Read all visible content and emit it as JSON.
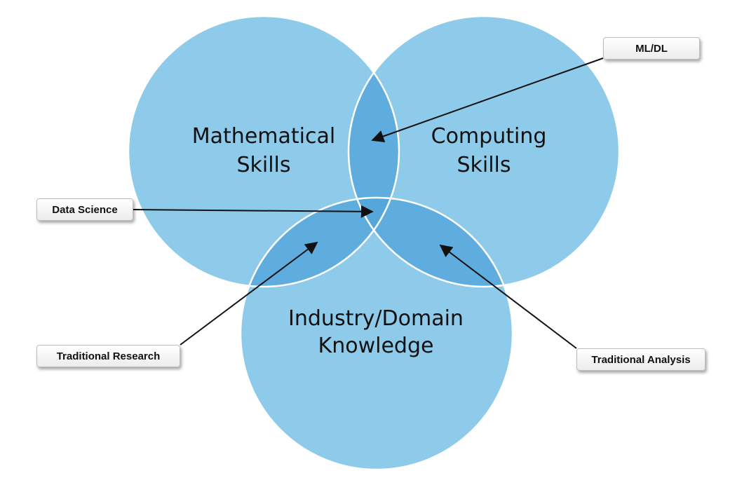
{
  "circles": {
    "math": {
      "line1": "Mathematical",
      "line2": "Skills"
    },
    "computing": {
      "line1": "Computing",
      "line2": "Skills"
    },
    "domain": {
      "line1": "Industry/Domain",
      "line2": "Knowledge"
    }
  },
  "callouts": {
    "ml_dl": "ML/DL",
    "data_science": "Data Science",
    "traditional_research": "Traditional Research",
    "traditional_analysis": "Traditional Analysis"
  },
  "colors": {
    "circle_fill": "#8ecae9",
    "overlap_fill": "#5fadde",
    "center_fill": "#55a6da",
    "circle_stroke": "#ffffff",
    "arrow": "#111111"
  }
}
